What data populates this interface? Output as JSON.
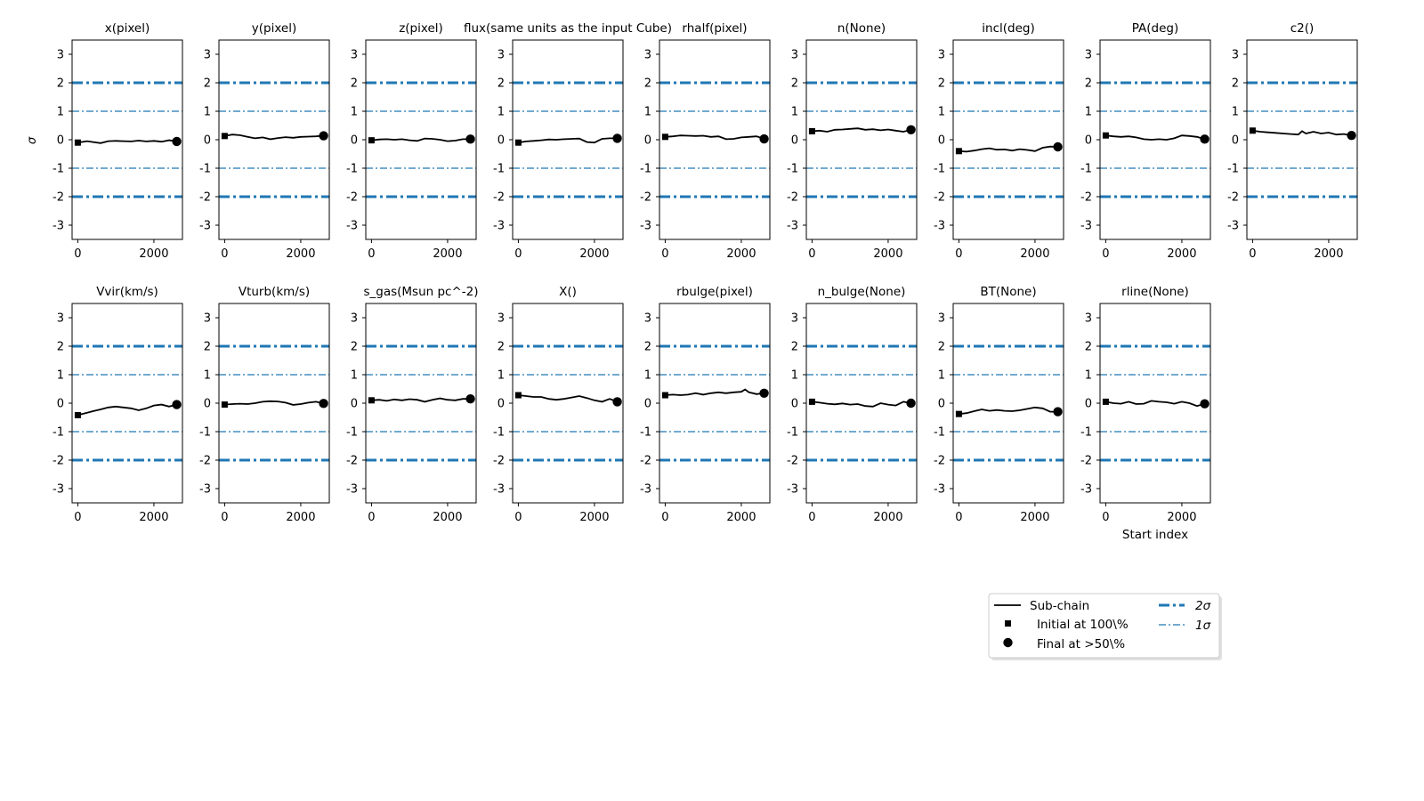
{
  "figure": {
    "ylabel": "σ",
    "xlabel": "Start index",
    "legend": {
      "position": "lower-right",
      "items": [
        {
          "label": "Sub-chain",
          "kind": "line"
        },
        {
          "label": "Initial at 100\\%",
          "kind": "square"
        },
        {
          "label": "Final at $>50$\\%",
          "display": "Final at  >50\\%",
          "kind": "circle"
        },
        {
          "label": "2σ",
          "kind": "thick-dashdot"
        },
        {
          "label": "1σ",
          "kind": "thin-dashdot"
        }
      ]
    },
    "colors": {
      "line": "#000000",
      "reference": "#1f77b4",
      "axes": "#000000"
    }
  },
  "chart_data": [
    {
      "type": "line",
      "title": "x(pixel)",
      "x": [
        0,
        250,
        400,
        600,
        800,
        1000,
        1200,
        1400,
        1600,
        1800,
        2000,
        2200,
        2400,
        2600
      ],
      "values": [
        -0.1,
        -0.05,
        -0.08,
        -0.12,
        -0.05,
        -0.04,
        -0.05,
        -0.06,
        -0.03,
        -0.06,
        -0.04,
        -0.07,
        -0.02,
        -0.06
      ],
      "ylim": [
        -3.5,
        3.5
      ],
      "xlim": [
        -150,
        2750
      ],
      "yticks": [
        -3,
        -2,
        -1,
        0,
        1,
        2,
        3
      ],
      "xticks": [
        0,
        2000
      ],
      "ref_lines": [
        {
          "y": 2,
          "kind": "2sigma"
        },
        {
          "y": 1,
          "kind": "1sigma"
        },
        {
          "y": -1,
          "kind": "1sigma"
        },
        {
          "y": -2,
          "kind": "2sigma"
        }
      ]
    },
    {
      "type": "line",
      "title": "y(pixel)",
      "x": [
        0,
        200,
        400,
        600,
        800,
        1000,
        1200,
        1400,
        1600,
        1800,
        2000,
        2200,
        2400,
        2600
      ],
      "values": [
        0.13,
        0.18,
        0.16,
        0.1,
        0.05,
        0.08,
        0.02,
        0.06,
        0.09,
        0.07,
        0.1,
        0.11,
        0.12,
        0.14
      ],
      "ylim": [
        -3.5,
        3.5
      ],
      "xlim": [
        -150,
        2750
      ],
      "yticks": [
        -3,
        -2,
        -1,
        0,
        1,
        2,
        3
      ],
      "xticks": [
        0,
        2000
      ],
      "ref_lines": [
        {
          "y": 2,
          "kind": "2sigma"
        },
        {
          "y": 1,
          "kind": "1sigma"
        },
        {
          "y": -1,
          "kind": "1sigma"
        },
        {
          "y": -2,
          "kind": "2sigma"
        }
      ]
    },
    {
      "type": "line",
      "title": "z(pixel)",
      "x": [
        0,
        200,
        400,
        600,
        800,
        1000,
        1200,
        1400,
        1600,
        1800,
        2000,
        2200,
        2400,
        2600
      ],
      "values": [
        -0.02,
        0.01,
        0.02,
        0.0,
        0.02,
        -0.02,
        -0.04,
        0.04,
        0.03,
        0.0,
        -0.05,
        -0.03,
        0.02,
        0.02
      ],
      "ylim": [
        -3.5,
        3.5
      ],
      "xlim": [
        -150,
        2750
      ],
      "yticks": [
        -3,
        -2,
        -1,
        0,
        1,
        2,
        3
      ],
      "xticks": [
        0,
        2000
      ],
      "ref_lines": [
        {
          "y": 2,
          "kind": "2sigma"
        },
        {
          "y": 1,
          "kind": "1sigma"
        },
        {
          "y": -1,
          "kind": "1sigma"
        },
        {
          "y": -2,
          "kind": "2sigma"
        }
      ]
    },
    {
      "type": "line",
      "title": "flux(same units as the input Cube)",
      "x": [
        0,
        200,
        400,
        600,
        800,
        1000,
        1200,
        1400,
        1600,
        1800,
        2000,
        2200,
        2400,
        2600
      ],
      "values": [
        -0.1,
        -0.06,
        -0.04,
        -0.02,
        0.01,
        0.0,
        0.02,
        0.03,
        0.04,
        -0.08,
        -0.1,
        0.03,
        0.05,
        0.05
      ],
      "ylim": [
        -3.5,
        3.5
      ],
      "xlim": [
        -150,
        2750
      ],
      "yticks": [
        -3,
        -2,
        -1,
        0,
        1,
        2,
        3
      ],
      "xticks": [
        0,
        2000
      ],
      "ref_lines": [
        {
          "y": 2,
          "kind": "2sigma"
        },
        {
          "y": 1,
          "kind": "1sigma"
        },
        {
          "y": -1,
          "kind": "1sigma"
        },
        {
          "y": -2,
          "kind": "2sigma"
        }
      ]
    },
    {
      "type": "line",
      "title": "rhalf(pixel)",
      "x": [
        0,
        200,
        400,
        600,
        800,
        1000,
        1200,
        1400,
        1600,
        1800,
        2000,
        2200,
        2400,
        2600
      ],
      "values": [
        0.1,
        0.12,
        0.15,
        0.14,
        0.13,
        0.14,
        0.1,
        0.12,
        0.02,
        0.03,
        0.08,
        0.1,
        0.12,
        0.03
      ],
      "ylim": [
        -3.5,
        3.5
      ],
      "xlim": [
        -150,
        2750
      ],
      "yticks": [
        -3,
        -2,
        -1,
        0,
        1,
        2,
        3
      ],
      "xticks": [
        0,
        2000
      ],
      "ref_lines": [
        {
          "y": 2,
          "kind": "2sigma"
        },
        {
          "y": 1,
          "kind": "1sigma"
        },
        {
          "y": -1,
          "kind": "1sigma"
        },
        {
          "y": -2,
          "kind": "2sigma"
        }
      ]
    },
    {
      "type": "line",
      "title": "n(None)",
      "x": [
        0,
        200,
        400,
        600,
        800,
        1000,
        1200,
        1400,
        1600,
        1800,
        2000,
        2200,
        2400,
        2600
      ],
      "values": [
        0.3,
        0.32,
        0.28,
        0.35,
        0.36,
        0.38,
        0.4,
        0.35,
        0.37,
        0.33,
        0.36,
        0.32,
        0.28,
        0.35
      ],
      "ylim": [
        -3.5,
        3.5
      ],
      "xlim": [
        -150,
        2750
      ],
      "yticks": [
        -3,
        -2,
        -1,
        0,
        1,
        2,
        3
      ],
      "xticks": [
        0,
        2000
      ],
      "ref_lines": [
        {
          "y": 2,
          "kind": "2sigma"
        },
        {
          "y": 1,
          "kind": "1sigma"
        },
        {
          "y": -1,
          "kind": "1sigma"
        },
        {
          "y": -2,
          "kind": "2sigma"
        }
      ]
    },
    {
      "type": "line",
      "title": "incl(deg)",
      "x": [
        0,
        200,
        400,
        600,
        800,
        1000,
        1200,
        1400,
        1600,
        1800,
        2000,
        2200,
        2400,
        2600
      ],
      "values": [
        -0.4,
        -0.42,
        -0.38,
        -0.33,
        -0.3,
        -0.35,
        -0.34,
        -0.38,
        -0.33,
        -0.36,
        -0.4,
        -0.28,
        -0.24,
        -0.25
      ],
      "ylim": [
        -3.5,
        3.5
      ],
      "xlim": [
        -150,
        2750
      ],
      "yticks": [
        -3,
        -2,
        -1,
        0,
        1,
        2,
        3
      ],
      "xticks": [
        0,
        2000
      ],
      "ref_lines": [
        {
          "y": 2,
          "kind": "2sigma"
        },
        {
          "y": 1,
          "kind": "1sigma"
        },
        {
          "y": -1,
          "kind": "1sigma"
        },
        {
          "y": -2,
          "kind": "2sigma"
        }
      ]
    },
    {
      "type": "line",
      "title": "PA(deg)",
      "x": [
        0,
        200,
        400,
        600,
        800,
        1000,
        1200,
        1400,
        1600,
        1800,
        2000,
        2200,
        2400,
        2600
      ],
      "values": [
        0.15,
        0.12,
        0.1,
        0.12,
        0.08,
        0.02,
        0.0,
        0.02,
        0.0,
        0.05,
        0.15,
        0.13,
        0.1,
        0.02
      ],
      "ylim": [
        -3.5,
        3.5
      ],
      "xlim": [
        -150,
        2750
      ],
      "yticks": [
        -3,
        -2,
        -1,
        0,
        1,
        2,
        3
      ],
      "xticks": [
        0,
        2000
      ],
      "ref_lines": [
        {
          "y": 2,
          "kind": "2sigma"
        },
        {
          "y": 1,
          "kind": "1sigma"
        },
        {
          "y": -1,
          "kind": "1sigma"
        },
        {
          "y": -2,
          "kind": "2sigma"
        }
      ]
    },
    {
      "type": "line",
      "title": "c2()",
      "x": [
        0,
        200,
        400,
        600,
        800,
        1000,
        1200,
        1300,
        1400,
        1600,
        1800,
        2000,
        2200,
        2400,
        2600
      ],
      "values": [
        0.32,
        0.28,
        0.26,
        0.24,
        0.22,
        0.2,
        0.18,
        0.3,
        0.22,
        0.28,
        0.22,
        0.25,
        0.18,
        0.2,
        0.15
      ],
      "ylim": [
        -3.5,
        3.5
      ],
      "xlim": [
        -150,
        2750
      ],
      "yticks": [
        -3,
        -2,
        -1,
        0,
        1,
        2,
        3
      ],
      "xticks": [
        0,
        2000
      ],
      "ref_lines": [
        {
          "y": 2,
          "kind": "2sigma"
        },
        {
          "y": 1,
          "kind": "1sigma"
        },
        {
          "y": -1,
          "kind": "1sigma"
        },
        {
          "y": -2,
          "kind": "2sigma"
        }
      ]
    },
    {
      "type": "line",
      "title": "Vvir(km/s)",
      "x": [
        0,
        200,
        400,
        600,
        800,
        1000,
        1200,
        1400,
        1600,
        1800,
        2000,
        2200,
        2400,
        2600
      ],
      "values": [
        -0.42,
        -0.35,
        -0.28,
        -0.22,
        -0.15,
        -0.12,
        -0.15,
        -0.18,
        -0.25,
        -0.18,
        -0.08,
        -0.05,
        -0.12,
        -0.05
      ],
      "ylim": [
        -3.5,
        3.5
      ],
      "xlim": [
        -150,
        2750
      ],
      "yticks": [
        -3,
        -2,
        -1,
        0,
        1,
        2,
        3
      ],
      "xticks": [
        0,
        2000
      ],
      "ref_lines": [
        {
          "y": 2,
          "kind": "2sigma"
        },
        {
          "y": 1,
          "kind": "1sigma"
        },
        {
          "y": -1,
          "kind": "1sigma"
        },
        {
          "y": -2,
          "kind": "2sigma"
        }
      ]
    },
    {
      "type": "line",
      "title": "Vturb(km/s)",
      "x": [
        0,
        200,
        400,
        600,
        800,
        1000,
        1200,
        1400,
        1600,
        1800,
        2000,
        2200,
        2400,
        2600
      ],
      "values": [
        -0.05,
        -0.03,
        -0.02,
        -0.03,
        0.0,
        0.05,
        0.07,
        0.06,
        0.02,
        -0.06,
        -0.03,
        0.02,
        0.05,
        -0.01
      ],
      "ylim": [
        -3.5,
        3.5
      ],
      "xlim": [
        -150,
        2750
      ],
      "yticks": [
        -3,
        -2,
        -1,
        0,
        1,
        2,
        3
      ],
      "xticks": [
        0,
        2000
      ],
      "ref_lines": [
        {
          "y": 2,
          "kind": "2sigma"
        },
        {
          "y": 1,
          "kind": "1sigma"
        },
        {
          "y": -1,
          "kind": "1sigma"
        },
        {
          "y": -2,
          "kind": "2sigma"
        }
      ]
    },
    {
      "type": "line",
      "title": "s_gas(Msun pc^-2)",
      "x": [
        0,
        200,
        400,
        600,
        800,
        1000,
        1200,
        1400,
        1600,
        1800,
        2000,
        2200,
        2400,
        2600
      ],
      "values": [
        0.1,
        0.12,
        0.08,
        0.13,
        0.1,
        0.14,
        0.12,
        0.05,
        0.12,
        0.17,
        0.12,
        0.1,
        0.15,
        0.15
      ],
      "ylim": [
        -3.5,
        3.5
      ],
      "xlim": [
        -150,
        2750
      ],
      "yticks": [
        -3,
        -2,
        -1,
        0,
        1,
        2,
        3
      ],
      "xticks": [
        0,
        2000
      ],
      "ref_lines": [
        {
          "y": 2,
          "kind": "2sigma"
        },
        {
          "y": 1,
          "kind": "1sigma"
        },
        {
          "y": -1,
          "kind": "1sigma"
        },
        {
          "y": -2,
          "kind": "2sigma"
        }
      ]
    },
    {
      "type": "line",
      "title": "X()",
      "x": [
        0,
        200,
        400,
        600,
        800,
        1000,
        1200,
        1400,
        1600,
        1800,
        2000,
        2200,
        2400,
        2600
      ],
      "values": [
        0.28,
        0.25,
        0.22,
        0.22,
        0.15,
        0.12,
        0.15,
        0.2,
        0.25,
        0.18,
        0.1,
        0.05,
        0.15,
        0.05
      ],
      "ylim": [
        -3.5,
        3.5
      ],
      "xlim": [
        -150,
        2750
      ],
      "yticks": [
        -3,
        -2,
        -1,
        0,
        1,
        2,
        3
      ],
      "xticks": [
        0,
        2000
      ],
      "ref_lines": [
        {
          "y": 2,
          "kind": "2sigma"
        },
        {
          "y": 1,
          "kind": "1sigma"
        },
        {
          "y": -1,
          "kind": "1sigma"
        },
        {
          "y": -2,
          "kind": "2sigma"
        }
      ]
    },
    {
      "type": "line",
      "title": "rbulge(pixel)",
      "x": [
        0,
        200,
        400,
        600,
        800,
        1000,
        1200,
        1400,
        1600,
        1800,
        2000,
        2100,
        2200,
        2400,
        2600
      ],
      "values": [
        0.28,
        0.3,
        0.28,
        0.3,
        0.35,
        0.3,
        0.35,
        0.38,
        0.35,
        0.38,
        0.4,
        0.48,
        0.38,
        0.32,
        0.35
      ],
      "ylim": [
        -3.5,
        3.5
      ],
      "xlim": [
        -150,
        2750
      ],
      "yticks": [
        -3,
        -2,
        -1,
        0,
        1,
        2,
        3
      ],
      "xticks": [
        0,
        2000
      ],
      "ref_lines": [
        {
          "y": 2,
          "kind": "2sigma"
        },
        {
          "y": 1,
          "kind": "1sigma"
        },
        {
          "y": -1,
          "kind": "1sigma"
        },
        {
          "y": -2,
          "kind": "2sigma"
        }
      ]
    },
    {
      "type": "line",
      "title": "n_bulge(None)",
      "x": [
        0,
        200,
        400,
        600,
        800,
        1000,
        1200,
        1400,
        1600,
        1800,
        2000,
        2200,
        2400,
        2600
      ],
      "values": [
        0.05,
        0.02,
        -0.02,
        -0.04,
        -0.01,
        -0.05,
        -0.03,
        -0.1,
        -0.12,
        0.0,
        -0.05,
        -0.08,
        0.05,
        0.0
      ],
      "ylim": [
        -3.5,
        3.5
      ],
      "xlim": [
        -150,
        2750
      ],
      "yticks": [
        -3,
        -2,
        -1,
        0,
        1,
        2,
        3
      ],
      "xticks": [
        0,
        2000
      ],
      "ref_lines": [
        {
          "y": 2,
          "kind": "2sigma"
        },
        {
          "y": 1,
          "kind": "1sigma"
        },
        {
          "y": -1,
          "kind": "1sigma"
        },
        {
          "y": -2,
          "kind": "2sigma"
        }
      ]
    },
    {
      "type": "line",
      "title": "BT(None)",
      "x": [
        0,
        200,
        400,
        600,
        800,
        1000,
        1200,
        1400,
        1600,
        1800,
        2000,
        2200,
        2400,
        2600
      ],
      "values": [
        -0.38,
        -0.35,
        -0.28,
        -0.22,
        -0.27,
        -0.24,
        -0.27,
        -0.28,
        -0.25,
        -0.2,
        -0.15,
        -0.18,
        -0.3,
        -0.3
      ],
      "ylim": [
        -3.5,
        3.5
      ],
      "xlim": [
        -150,
        2750
      ],
      "yticks": [
        -3,
        -2,
        -1,
        0,
        1,
        2,
        3
      ],
      "xticks": [
        0,
        2000
      ],
      "ref_lines": [
        {
          "y": 2,
          "kind": "2sigma"
        },
        {
          "y": 1,
          "kind": "1sigma"
        },
        {
          "y": -1,
          "kind": "1sigma"
        },
        {
          "y": -2,
          "kind": "2sigma"
        }
      ]
    },
    {
      "type": "line",
      "title": "rline(None)",
      "x": [
        0,
        200,
        400,
        600,
        800,
        1000,
        1200,
        1400,
        1600,
        1800,
        2000,
        2200,
        2400,
        2600
      ],
      "values": [
        0.05,
        0.0,
        -0.02,
        0.05,
        -0.03,
        -0.02,
        0.08,
        0.05,
        0.03,
        -0.02,
        0.05,
        0.0,
        -0.1,
        -0.02
      ],
      "ylim": [
        -3.5,
        3.5
      ],
      "xlim": [
        -150,
        2750
      ],
      "yticks": [
        -3,
        -2,
        -1,
        0,
        1,
        2,
        3
      ],
      "xticks": [
        0,
        2000
      ],
      "ref_lines": [
        {
          "y": 2,
          "kind": "2sigma"
        },
        {
          "y": 1,
          "kind": "1sigma"
        },
        {
          "y": -1,
          "kind": "1sigma"
        },
        {
          "y": -2,
          "kind": "2sigma"
        }
      ]
    }
  ]
}
